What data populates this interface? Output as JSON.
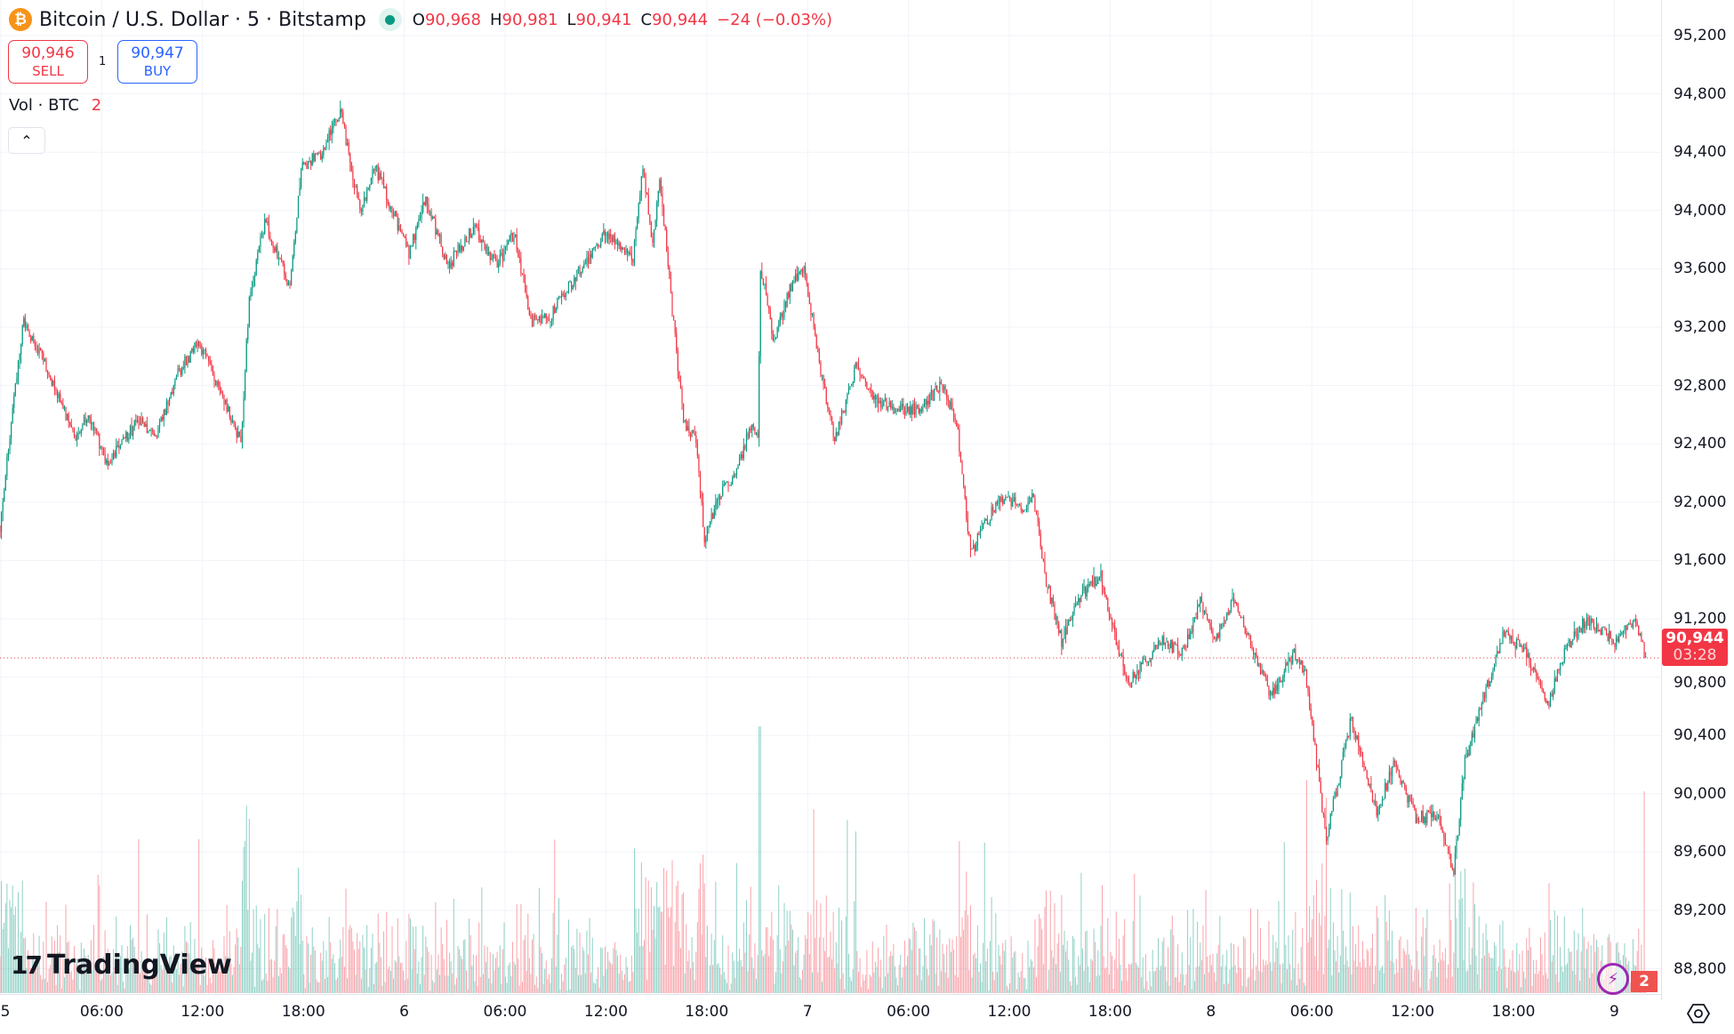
{
  "header": {
    "symbol_title": "Bitcoin / U.S. Dollar · 5 · Bitstamp",
    "coin_icon": "bitcoin-icon",
    "ohlc": {
      "o_label": "O",
      "o": "90,968",
      "h_label": "H",
      "h": "90,981",
      "l_label": "L",
      "l": "90,941",
      "c_label": "C",
      "c": "90,944",
      "change": "−24 (−0.03%)"
    }
  },
  "trade": {
    "sell_price": "90,946",
    "sell_label": "SELL",
    "spread": "1",
    "buy_price": "90,947",
    "buy_label": "BUY"
  },
  "volume_legend": {
    "label": "Vol · BTC",
    "value": "2"
  },
  "collapse_icon": "chevron-up-icon",
  "last_price": {
    "price": "90,944",
    "countdown": "03:28"
  },
  "bottom_badge": "2",
  "logo": "TradingView",
  "colors": {
    "up": "#089981",
    "down": "#f23645",
    "grid": "#f0f3fa",
    "sell": "#f23645",
    "buy": "#2962ff"
  },
  "chart_data": {
    "type": "candlestick",
    "interval": "5",
    "x_tick_labels": [
      "5",
      "06:00",
      "12:00",
      "18:00",
      "6",
      "06:00",
      "12:00",
      "18:00",
      "7",
      "06:00",
      "12:00",
      "18:00",
      "8",
      "06:00",
      "12:00",
      "18:00",
      "9"
    ],
    "y_tick_labels": [
      "95,200",
      "94,800",
      "94,400",
      "94,000",
      "93,600",
      "93,200",
      "92,800",
      "92,400",
      "92,000",
      "91,600",
      "91,200",
      "90,800",
      "90,400",
      "90,000",
      "89,600",
      "89,200",
      "88,800"
    ],
    "y_range": [
      88700,
      95300
    ],
    "grid": true,
    "approx_price_path": [
      [
        "5 00:00",
        91840
      ],
      [
        "5 01:00",
        92870
      ],
      [
        "5 01:25",
        93250
      ],
      [
        "5 02:40",
        92950
      ],
      [
        "5 04:30",
        92420
      ],
      [
        "5 05:15",
        92600
      ],
      [
        "5 06:25",
        92260
      ],
      [
        "5 08:15",
        92560
      ],
      [
        "5 09:15",
        92420
      ],
      [
        "5 10:30",
        92870
      ],
      [
        "5 11:50",
        93100
      ],
      [
        "5 13:50",
        92560
      ],
      [
        "5 14:20",
        92420
      ],
      [
        "5 14:50",
        93400
      ],
      [
        "5 15:45",
        93930
      ],
      [
        "5 17:15",
        93470
      ],
      [
        "5 17:55",
        94300
      ],
      [
        "5 19:05",
        94390
      ],
      [
        "5 20:15",
        94680
      ],
      [
        "5 21:25",
        94000
      ],
      [
        "5 22:20",
        94300
      ],
      [
        "6 00:20",
        93700
      ],
      [
        "6 01:20",
        94080
      ],
      [
        "6 02:40",
        93620
      ],
      [
        "6 04:10",
        93890
      ],
      [
        "6 05:35",
        93620
      ],
      [
        "6 06:35",
        93850
      ],
      [
        "6 07:35",
        93250
      ],
      [
        "6 08:35",
        93250
      ],
      [
        "6 10:15",
        93550
      ],
      [
        "6 12:05",
        93850
      ],
      [
        "6 13:40",
        93660
      ],
      [
        "6 14:15",
        94300
      ],
      [
        "6 14:50",
        93770
      ],
      [
        "6 15:15",
        94230
      ],
      [
        "6 16:00",
        93320
      ],
      [
        "6 16:40",
        92560
      ],
      [
        "6 17:25",
        92420
      ],
      [
        "6 17:55",
        91730
      ],
      [
        "6 18:45",
        92040
      ],
      [
        "6 19:45",
        92190
      ],
      [
        "6 20:45",
        92560
      ],
      [
        "6 21:05",
        92420
      ],
      [
        "6 21:15",
        93620
      ],
      [
        "6 22:05",
        93090
      ],
      [
        "6 23:00",
        93470
      ],
      [
        "6 23:50",
        93620
      ],
      [
        "7 00:40",
        93010
      ],
      [
        "7 01:40",
        92420
      ],
      [
        "7 03:00",
        92950
      ],
      [
        "7 04:00",
        92720
      ],
      [
        "7 05:15",
        92640
      ],
      [
        "7 06:35",
        92640
      ],
      [
        "7 08:05",
        92800
      ],
      [
        "7 08:55",
        92560
      ],
      [
        "7 09:45",
        91650
      ],
      [
        "7 11:30",
        92040
      ],
      [
        "7 12:50",
        91960
      ],
      [
        "7 13:30",
        92040
      ],
      [
        "7 14:10",
        91500
      ],
      [
        "7 15:10",
        91050
      ],
      [
        "7 16:10",
        91350
      ],
      [
        "7 17:30",
        91500
      ],
      [
        "7 18:25",
        91050
      ],
      [
        "7 19:05",
        90750
      ],
      [
        "7 21:05",
        91050
      ],
      [
        "7 22:25",
        90970
      ],
      [
        "7 23:25",
        91320
      ],
      [
        "8 00:20",
        91050
      ],
      [
        "8 01:20",
        91350
      ],
      [
        "8 02:20",
        91050
      ],
      [
        "8 03:40",
        90670
      ],
      [
        "8 05:00",
        90970
      ],
      [
        "8 05:40",
        90820
      ],
      [
        "8 06:35",
        89990
      ],
      [
        "8 06:55",
        89690
      ],
      [
        "8 08:25",
        90520
      ],
      [
        "8 09:55",
        89840
      ],
      [
        "8 10:55",
        90220
      ],
      [
        "8 12:15",
        89840
      ],
      [
        "8 13:30",
        89840
      ],
      [
        "8 14:30",
        89460
      ],
      [
        "8 15:10",
        90220
      ],
      [
        "8 16:30",
        90750
      ],
      [
        "8 17:30",
        91120
      ],
      [
        "8 18:45",
        90970
      ],
      [
        "8 20:05",
        90600
      ],
      [
        "8 21:05",
        90970
      ],
      [
        "8 22:25",
        91200
      ],
      [
        "9 00:05",
        91050
      ],
      [
        "9 01:15",
        91200
      ],
      [
        "9 01:55",
        90940
      ]
    ]
  }
}
